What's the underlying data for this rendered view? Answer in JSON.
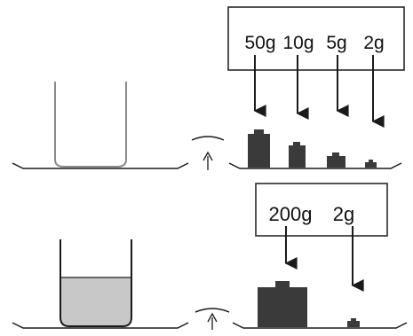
{
  "colors": {
    "line": "#1a1a1a",
    "weight_fill": "#3a3a3a",
    "liquid_fill": "#c8c8c8",
    "background": "#ffffff"
  },
  "top_row": {
    "beaker_state": "empty",
    "pointer_icon": "up-arrow-pointer-icon",
    "weights_box": {
      "labels": [
        "50g",
        "10g",
        "5g",
        "2g"
      ]
    }
  },
  "bottom_row": {
    "beaker_state": "filled-with-liquid",
    "pointer_icon": "up-arrow-pointer-icon",
    "weights_box": {
      "labels": [
        "200g",
        "2g"
      ]
    }
  }
}
